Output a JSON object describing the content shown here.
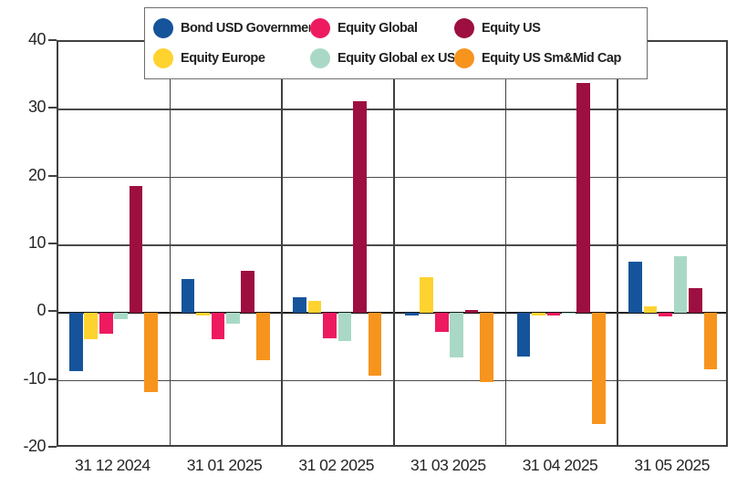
{
  "chart_data": {
    "type": "bar",
    "title": "",
    "categories": [
      "31 12 2024",
      "31 01 2025",
      "31 02 2025",
      "31 03 2025",
      "31 04 2025",
      "31 05 2025"
    ],
    "series": [
      {
        "name": "Bond USD Government",
        "color": "#15549a",
        "values": [
          -8.6,
          5.0,
          2.3,
          -0.3,
          -6.4,
          7.6
        ]
      },
      {
        "name": "Equity Europe",
        "color": "#fed32f",
        "values": [
          -3.8,
          -0.3,
          1.8,
          5.3,
          -0.4,
          1.0
        ]
      },
      {
        "name": "Equity Global",
        "color": "#ee1a5f",
        "values": [
          -3.0,
          -3.9,
          -3.7,
          -2.8,
          -0.4,
          -0.5
        ]
      },
      {
        "name": "Equity Global ex US",
        "color": "#a9d9c6",
        "values": [
          -0.9,
          -1.6,
          -4.1,
          -6.5,
          -0.1,
          8.4
        ]
      },
      {
        "name": "Equity US",
        "color": "#9d0f40",
        "values": [
          18.8,
          6.3,
          31.2,
          0.4,
          33.9,
          3.7
        ]
      },
      {
        "name": "Equity US Sm&Mid Cap",
        "color": "#f7941e",
        "values": [
          -11.7,
          -7.0,
          -9.2,
          -10.2,
          -16.4,
          -8.3
        ]
      }
    ],
    "legend_order": [
      "Bond USD Government",
      "Equity Global",
      "Equity US",
      "Equity Europe",
      "Equity Global ex US",
      "Equity US Sm&Mid Cap"
    ],
    "legend_position": "top",
    "xlabel": "",
    "ylabel": "",
    "ylim": [
      -20,
      40
    ],
    "yticks": [
      40,
      30,
      20,
      10,
      0,
      -10,
      -20
    ],
    "grid": true
  }
}
